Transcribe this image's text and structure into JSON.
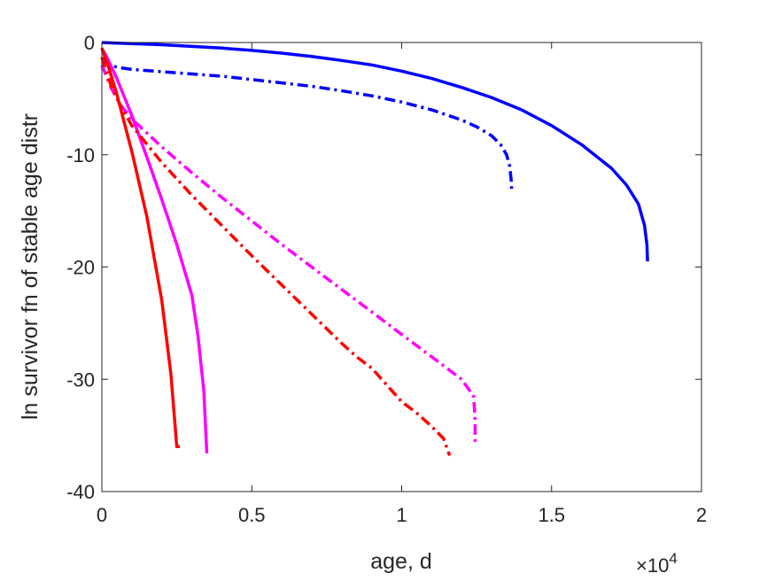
{
  "chart_data": {
    "type": "line",
    "xlabel": "age, d",
    "ylabel": "ln survivor fn of stable age distr",
    "x_exponent_label": "×10",
    "x_exponent_power": "4",
    "x_multiplier": 10000,
    "xlim": [
      0,
      2
    ],
    "ylim": [
      -40,
      0
    ],
    "xticks": [
      0,
      0.5,
      1,
      1.5,
      2
    ],
    "xtick_labels": [
      "0",
      "0.5",
      "1",
      "1.5",
      "2"
    ],
    "yticks": [
      0,
      -10,
      -20,
      -30,
      -40
    ],
    "ytick_labels": [
      "0",
      "-10",
      "-20",
      "-30",
      "-40"
    ],
    "grid": false,
    "legend": null,
    "series": [
      {
        "color": "#0000ff",
        "style": "solid",
        "points": [
          [
            0,
            0
          ],
          [
            0.1,
            -0.1
          ],
          [
            0.2,
            -0.2
          ],
          [
            0.3,
            -0.35
          ],
          [
            0.4,
            -0.5
          ],
          [
            0.5,
            -0.7
          ],
          [
            0.6,
            -0.95
          ],
          [
            0.7,
            -1.25
          ],
          [
            0.8,
            -1.6
          ],
          [
            0.9,
            -2.0
          ],
          [
            1.0,
            -2.55
          ],
          [
            1.1,
            -3.2
          ],
          [
            1.2,
            -4.0
          ],
          [
            1.3,
            -4.9
          ],
          [
            1.4,
            -6.0
          ],
          [
            1.5,
            -7.4
          ],
          [
            1.6,
            -9.1
          ],
          [
            1.7,
            -11.2
          ],
          [
            1.75,
            -12.7
          ],
          [
            1.79,
            -14.4
          ],
          [
            1.81,
            -16.3
          ],
          [
            1.818,
            -18.0
          ],
          [
            1.82,
            -19.5
          ]
        ]
      },
      {
        "color": "#0000ff",
        "style": "dashdot",
        "points": [
          [
            0,
            -1.4
          ],
          [
            0.02,
            -1.9
          ],
          [
            0.05,
            -2.2
          ],
          [
            0.1,
            -2.4
          ],
          [
            0.2,
            -2.6
          ],
          [
            0.3,
            -2.8
          ],
          [
            0.4,
            -3.0
          ],
          [
            0.5,
            -3.3
          ],
          [
            0.6,
            -3.6
          ],
          [
            0.7,
            -3.9
          ],
          [
            0.8,
            -4.3
          ],
          [
            0.9,
            -4.75
          ],
          [
            1.0,
            -5.3
          ],
          [
            1.1,
            -6.0
          ],
          [
            1.2,
            -6.9
          ],
          [
            1.25,
            -7.5
          ],
          [
            1.3,
            -8.3
          ],
          [
            1.33,
            -9.1
          ],
          [
            1.35,
            -10.0
          ],
          [
            1.36,
            -11.0
          ],
          [
            1.365,
            -12.2
          ],
          [
            1.367,
            -13.2
          ]
        ]
      },
      {
        "color": "#ff00ff",
        "style": "solid",
        "points": [
          [
            0,
            -0.5
          ],
          [
            0.02,
            -1.5
          ],
          [
            0.05,
            -3.2
          ],
          [
            0.1,
            -6.5
          ],
          [
            0.15,
            -10.2
          ],
          [
            0.2,
            -14.0
          ],
          [
            0.25,
            -18.0
          ],
          [
            0.3,
            -22.5
          ],
          [
            0.32,
            -26.0
          ],
          [
            0.34,
            -31.0
          ],
          [
            0.35,
            -36.6
          ]
        ]
      },
      {
        "color": "#ff00ff",
        "style": "dashdot",
        "points": [
          [
            0,
            -2.0
          ],
          [
            0.03,
            -4.0
          ],
          [
            0.06,
            -5.5
          ],
          [
            0.1,
            -6.8
          ],
          [
            0.2,
            -9.3
          ],
          [
            0.3,
            -11.6
          ],
          [
            0.4,
            -13.8
          ],
          [
            0.5,
            -15.9
          ],
          [
            0.6,
            -18.0
          ],
          [
            0.7,
            -20.0
          ],
          [
            0.8,
            -22.0
          ],
          [
            0.9,
            -24.0
          ],
          [
            1.0,
            -26.0
          ],
          [
            1.1,
            -28.0
          ],
          [
            1.2,
            -30.0
          ],
          [
            1.24,
            -31.5
          ],
          [
            1.245,
            -33.5
          ],
          [
            1.245,
            -35.7
          ]
        ]
      },
      {
        "color": "#ff0000",
        "style": "solid",
        "points": [
          [
            0,
            -0.5
          ],
          [
            0.02,
            -2.0
          ],
          [
            0.05,
            -4.6
          ],
          [
            0.1,
            -9.7
          ],
          [
            0.15,
            -15.5
          ],
          [
            0.2,
            -23.0
          ],
          [
            0.23,
            -29.5
          ],
          [
            0.25,
            -36.0
          ],
          [
            0.26,
            -36.0
          ]
        ]
      },
      {
        "color": "#ff0000",
        "style": "dashdot",
        "points": [
          [
            0,
            -1.3
          ],
          [
            0.03,
            -3.8
          ],
          [
            0.06,
            -5.5
          ],
          [
            0.1,
            -7.4
          ],
          [
            0.2,
            -10.7
          ],
          [
            0.3,
            -13.6
          ],
          [
            0.4,
            -16.3
          ],
          [
            0.5,
            -19.0
          ],
          [
            0.6,
            -21.6
          ],
          [
            0.7,
            -24.2
          ],
          [
            0.8,
            -26.8
          ],
          [
            0.85,
            -28.0
          ],
          [
            0.9,
            -29.0
          ],
          [
            0.95,
            -30.5
          ],
          [
            1.0,
            -32.0
          ],
          [
            1.05,
            -33.0
          ],
          [
            1.1,
            -34.2
          ],
          [
            1.14,
            -35.3
          ],
          [
            1.16,
            -36.8
          ]
        ]
      }
    ]
  }
}
